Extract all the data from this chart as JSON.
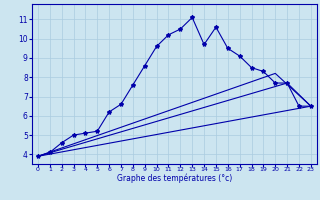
{
  "xlabel": "Graphe des températures (°c)",
  "bg_color": "#cce5f0",
  "grid_color": "#aacce0",
  "line_color": "#0000aa",
  "xmin": -0.5,
  "xmax": 23.5,
  "ymin": 3.5,
  "ymax": 11.8,
  "yticks": [
    4,
    5,
    6,
    7,
    8,
    9,
    10,
    11
  ],
  "xticks": [
    0,
    1,
    2,
    3,
    4,
    5,
    6,
    7,
    8,
    9,
    10,
    11,
    12,
    13,
    14,
    15,
    16,
    17,
    18,
    19,
    20,
    21,
    22,
    23
  ],
  "main_x": [
    0,
    1,
    2,
    3,
    4,
    5,
    6,
    7,
    8,
    9,
    10,
    11,
    12,
    13,
    14,
    15,
    16,
    17,
    18,
    19,
    20,
    21,
    22,
    23
  ],
  "main_y": [
    3.9,
    4.1,
    4.6,
    5.0,
    5.1,
    5.2,
    6.2,
    6.6,
    7.6,
    8.6,
    9.6,
    10.2,
    10.5,
    11.1,
    9.7,
    10.6,
    9.5,
    9.1,
    8.5,
    8.3,
    7.7,
    7.7,
    6.5,
    6.5
  ],
  "line2_x": [
    0,
    23
  ],
  "line2_y": [
    3.9,
    6.5
  ],
  "line3_x": [
    0,
    21,
    23
  ],
  "line3_y": [
    3.9,
    7.7,
    6.5
  ],
  "line4_x": [
    0,
    20,
    23
  ],
  "line4_y": [
    3.9,
    8.2,
    6.5
  ],
  "xlabel_fontsize": 5.5,
  "tick_fontsize_x": 4.5,
  "tick_fontsize_y": 5.5
}
